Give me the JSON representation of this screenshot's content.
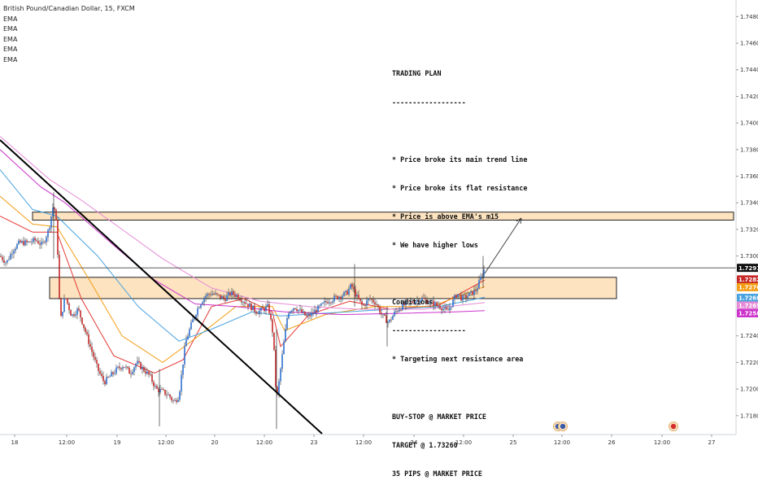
{
  "chart_title": "British Pound/Canadian Dollar, 15, FXCM",
  "indicators": [
    "EMA",
    "EMA",
    "EMA",
    "EMA",
    "EMA"
  ],
  "trading_plan": {
    "lines": [
      "TRADING PLAN",
      "------------------",
      "",
      "* Price broke its main trend line",
      "* Price broke its flat resistance",
      "* Price is above EMA's m15",
      "* We have higher lows",
      "",
      "Conditions",
      "------------------",
      "* Targeting next resistance area",
      "",
      "BUY-STOP @ MARKET PRICE",
      "TARGET @ 1.73260",
      "35 PIPS @ MARKET PRICE"
    ]
  },
  "colors": {
    "up_candle": "#2c6fd0",
    "down_candle": "#c62828",
    "zone_fill": "#fde3c0",
    "zone_border": "#222222",
    "trendline": "#000000",
    "ema_colors": [
      "#e53935",
      "#f39c12",
      "#4aa3df",
      "#cc33cc",
      "#e58ad6"
    ]
  },
  "chart_data": {
    "type": "candlestick",
    "ylim": [
      1.716,
      1.749
    ],
    "yticks": [
      "1.74800",
      "1.74600",
      "1.74400",
      "1.74200",
      "1.74000",
      "1.73800",
      "1.73600",
      "1.73400",
      "1.73200",
      "1.73000",
      "1.72400",
      "1.72200",
      "1.72000",
      "1.71800"
    ],
    "xticks": [
      "18",
      "12:00",
      "19",
      "12:00",
      "20",
      "12:00",
      "23",
      "12:00",
      "24",
      "12:00",
      "25",
      "12:00",
      "26",
      "12:00",
      "27"
    ],
    "price_labels": [
      {
        "text": "1.72911",
        "value": 1.72911,
        "color": "#111111"
      },
      {
        "text": "1.72824",
        "value": 1.72824,
        "color": "#c62828"
      },
      {
        "text": "1.72767",
        "value": 1.72767,
        "color": "#f39c12"
      },
      {
        "text": "1.72686",
        "value": 1.72686,
        "color": "#4aa3df"
      },
      {
        "text": "1.72650",
        "value": 1.7265,
        "color": "#e58ad6"
      },
      {
        "text": "1.72586",
        "value": 1.72586,
        "color": "#cc33cc"
      }
    ],
    "current_price": 1.72911,
    "zones": [
      {
        "name": "target-resistance-zone",
        "from": 1.7327,
        "to": 1.7333
      },
      {
        "name": "broken-flat-resistance-zone",
        "from": 1.7268,
        "to": 1.7284
      }
    ],
    "approx_close_path": [
      [
        0,
        1.73
      ],
      [
        8,
        1.7295
      ],
      [
        16,
        1.7305
      ],
      [
        24,
        1.731
      ],
      [
        34,
        1.731
      ],
      [
        44,
        1.7312
      ],
      [
        52,
        1.7308
      ],
      [
        60,
        1.732
      ],
      [
        66,
        1.734
      ],
      [
        70,
        1.732
      ],
      [
        74,
        1.725
      ],
      [
        80,
        1.727
      ],
      [
        88,
        1.7255
      ],
      [
        96,
        1.726
      ],
      [
        104,
        1.7245
      ],
      [
        112,
        1.723
      ],
      [
        120,
        1.7215
      ],
      [
        128,
        1.7205
      ],
      [
        136,
        1.721
      ],
      [
        144,
        1.7215
      ],
      [
        152,
        1.7218
      ],
      [
        160,
        1.7212
      ],
      [
        168,
        1.722
      ],
      [
        176,
        1.7215
      ],
      [
        184,
        1.721
      ],
      [
        192,
        1.72
      ],
      [
        200,
        1.7198
      ],
      [
        208,
        1.7195
      ],
      [
        214,
        1.719
      ],
      [
        220,
        1.7195
      ],
      [
        228,
        1.7235
      ],
      [
        236,
        1.725
      ],
      [
        244,
        1.7262
      ],
      [
        252,
        1.727
      ],
      [
        260,
        1.7272
      ],
      [
        268,
        1.727
      ],
      [
        276,
        1.7268
      ],
      [
        284,
        1.7272
      ],
      [
        292,
        1.727
      ],
      [
        300,
        1.7266
      ],
      [
        308,
        1.7262
      ],
      [
        316,
        1.7258
      ],
      [
        324,
        1.726
      ],
      [
        330,
        1.7262
      ],
      [
        336,
        1.724
      ],
      [
        340,
        1.719
      ],
      [
        344,
        1.721
      ],
      [
        348,
        1.723
      ],
      [
        354,
        1.7258
      ],
      [
        362,
        1.7262
      ],
      [
        370,
        1.7258
      ],
      [
        378,
        1.7254
      ],
      [
        386,
        1.7258
      ],
      [
        394,
        1.7262
      ],
      [
        402,
        1.7266
      ],
      [
        410,
        1.7268
      ],
      [
        418,
        1.727
      ],
      [
        426,
        1.7272
      ],
      [
        432,
        1.7278
      ],
      [
        438,
        1.727
      ],
      [
        446,
        1.7262
      ],
      [
        454,
        1.7268
      ],
      [
        462,
        1.7265
      ],
      [
        470,
        1.7255
      ],
      [
        478,
        1.725
      ],
      [
        486,
        1.7258
      ],
      [
        494,
        1.7262
      ],
      [
        502,
        1.7265
      ],
      [
        510,
        1.7266
      ],
      [
        518,
        1.7268
      ],
      [
        526,
        1.7266
      ],
      [
        534,
        1.7264
      ],
      [
        542,
        1.7262
      ],
      [
        550,
        1.7258
      ],
      [
        556,
        1.7265
      ],
      [
        562,
        1.7272
      ],
      [
        568,
        1.7268
      ],
      [
        574,
        1.727
      ],
      [
        580,
        1.7272
      ],
      [
        586,
        1.7275
      ],
      [
        592,
        1.7285
      ],
      [
        596,
        1.7291
      ]
    ],
    "ema_paths": [
      [
        [
          0,
          1.733
        ],
        [
          40,
          1.7318
        ],
        [
          70,
          1.7318
        ],
        [
          100,
          1.7268
        ],
        [
          140,
          1.7225
        ],
        [
          190,
          1.7212
        ],
        [
          225,
          1.7222
        ],
        [
          260,
          1.7262
        ],
        [
          300,
          1.7268
        ],
        [
          335,
          1.7258
        ],
        [
          345,
          1.7232
        ],
        [
          380,
          1.7256
        ],
        [
          430,
          1.7266
        ],
        [
          480,
          1.726
        ],
        [
          540,
          1.7263
        ],
        [
          596,
          1.7282
        ]
      ],
      [
        [
          0,
          1.7345
        ],
        [
          40,
          1.7324
        ],
        [
          70,
          1.7322
        ],
        [
          110,
          1.7282
        ],
        [
          150,
          1.724
        ],
        [
          200,
          1.722
        ],
        [
          240,
          1.7238
        ],
        [
          290,
          1.7262
        ],
        [
          335,
          1.7262
        ],
        [
          350,
          1.7244
        ],
        [
          400,
          1.7256
        ],
        [
          460,
          1.7262
        ],
        [
          530,
          1.7262
        ],
        [
          596,
          1.7277
        ]
      ],
      [
        [
          0,
          1.7365
        ],
        [
          40,
          1.7335
        ],
        [
          70,
          1.733
        ],
        [
          120,
          1.73
        ],
        [
          170,
          1.7262
        ],
        [
          220,
          1.7236
        ],
        [
          260,
          1.7245
        ],
        [
          310,
          1.7258
        ],
        [
          345,
          1.7255
        ],
        [
          400,
          1.7257
        ],
        [
          480,
          1.726
        ],
        [
          540,
          1.7262
        ],
        [
          596,
          1.7269
        ]
      ],
      [
        [
          0,
          1.738
        ],
        [
          50,
          1.7352
        ],
        [
          80,
          1.734
        ],
        [
          140,
          1.7308
        ],
        [
          190,
          1.7282
        ],
        [
          240,
          1.7264
        ],
        [
          290,
          1.7262
        ],
        [
          350,
          1.7258
        ],
        [
          420,
          1.7256
        ],
        [
          500,
          1.7257
        ],
        [
          560,
          1.7258
        ],
        [
          596,
          1.7259
        ]
      ],
      [
        [
          0,
          1.739
        ],
        [
          60,
          1.7358
        ],
        [
          100,
          1.7342
        ],
        [
          150,
          1.732
        ],
        [
          200,
          1.7298
        ],
        [
          260,
          1.7276
        ],
        [
          320,
          1.7266
        ],
        [
          380,
          1.7262
        ],
        [
          440,
          1.726
        ],
        [
          520,
          1.726
        ],
        [
          596,
          1.7265
        ]
      ]
    ]
  }
}
